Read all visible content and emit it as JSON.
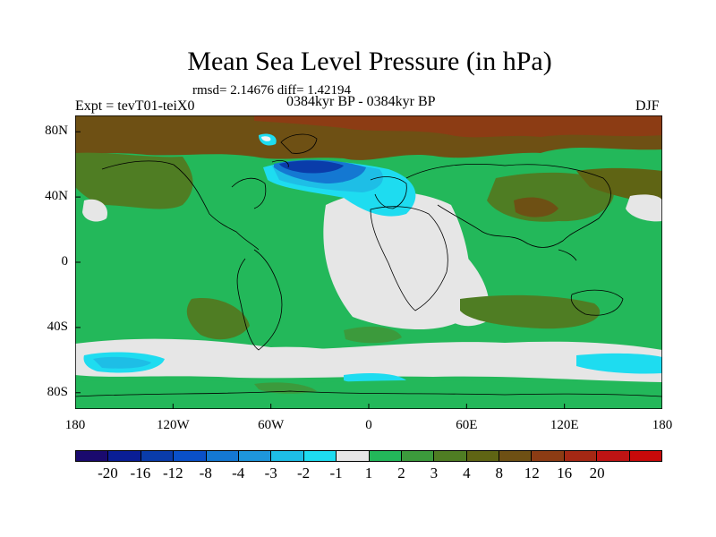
{
  "title": "Mean Sea Level Pressure (in hPa)",
  "subtitle_stats": "rmsd= 2.14676 diff= 1.42194",
  "period": "0384kyr BP - 0384kyr BP",
  "experiment": "Expt = tevT01-teiX0",
  "season": "DJF",
  "map": {
    "projection": "cylindrical equidistant",
    "lon_range": [
      -180,
      180
    ],
    "lat_range": [
      -90,
      90
    ],
    "lat_ticks": [
      {
        "lat": 80,
        "label": "80N"
      },
      {
        "lat": 40,
        "label": "40N"
      },
      {
        "lat": 0,
        "label": "0"
      },
      {
        "lat": -40,
        "label": "40S"
      },
      {
        "lat": -80,
        "label": "80S"
      }
    ],
    "lon_ticks": [
      {
        "lon": -180,
        "label": "180"
      },
      {
        "lon": -120,
        "label": "120W"
      },
      {
        "lon": -60,
        "label": "60W"
      },
      {
        "lon": 0,
        "label": "0"
      },
      {
        "lon": 60,
        "label": "60E"
      },
      {
        "lon": 120,
        "label": "120E"
      },
      {
        "lon": 180,
        "label": "180"
      }
    ]
  },
  "colorbar": {
    "colors": [
      "#1a0a6e",
      "#0a1e96",
      "#0a3caa",
      "#0a50c8",
      "#1478d2",
      "#1e96dc",
      "#1ebee6",
      "#1edcf0",
      "#e6e6e6",
      "#23b85a",
      "#3c9a3c",
      "#4f7d23",
      "#5f6414",
      "#6e5014",
      "#8c3c14",
      "#a52814",
      "#be1414",
      "#c80a0a"
    ],
    "labels": [
      "-20",
      "-16",
      "-12",
      "-8",
      "-4",
      "-3",
      "-2",
      "-1",
      "1",
      "2",
      "3",
      "4",
      "8",
      "12",
      "16",
      "20"
    ]
  }
}
